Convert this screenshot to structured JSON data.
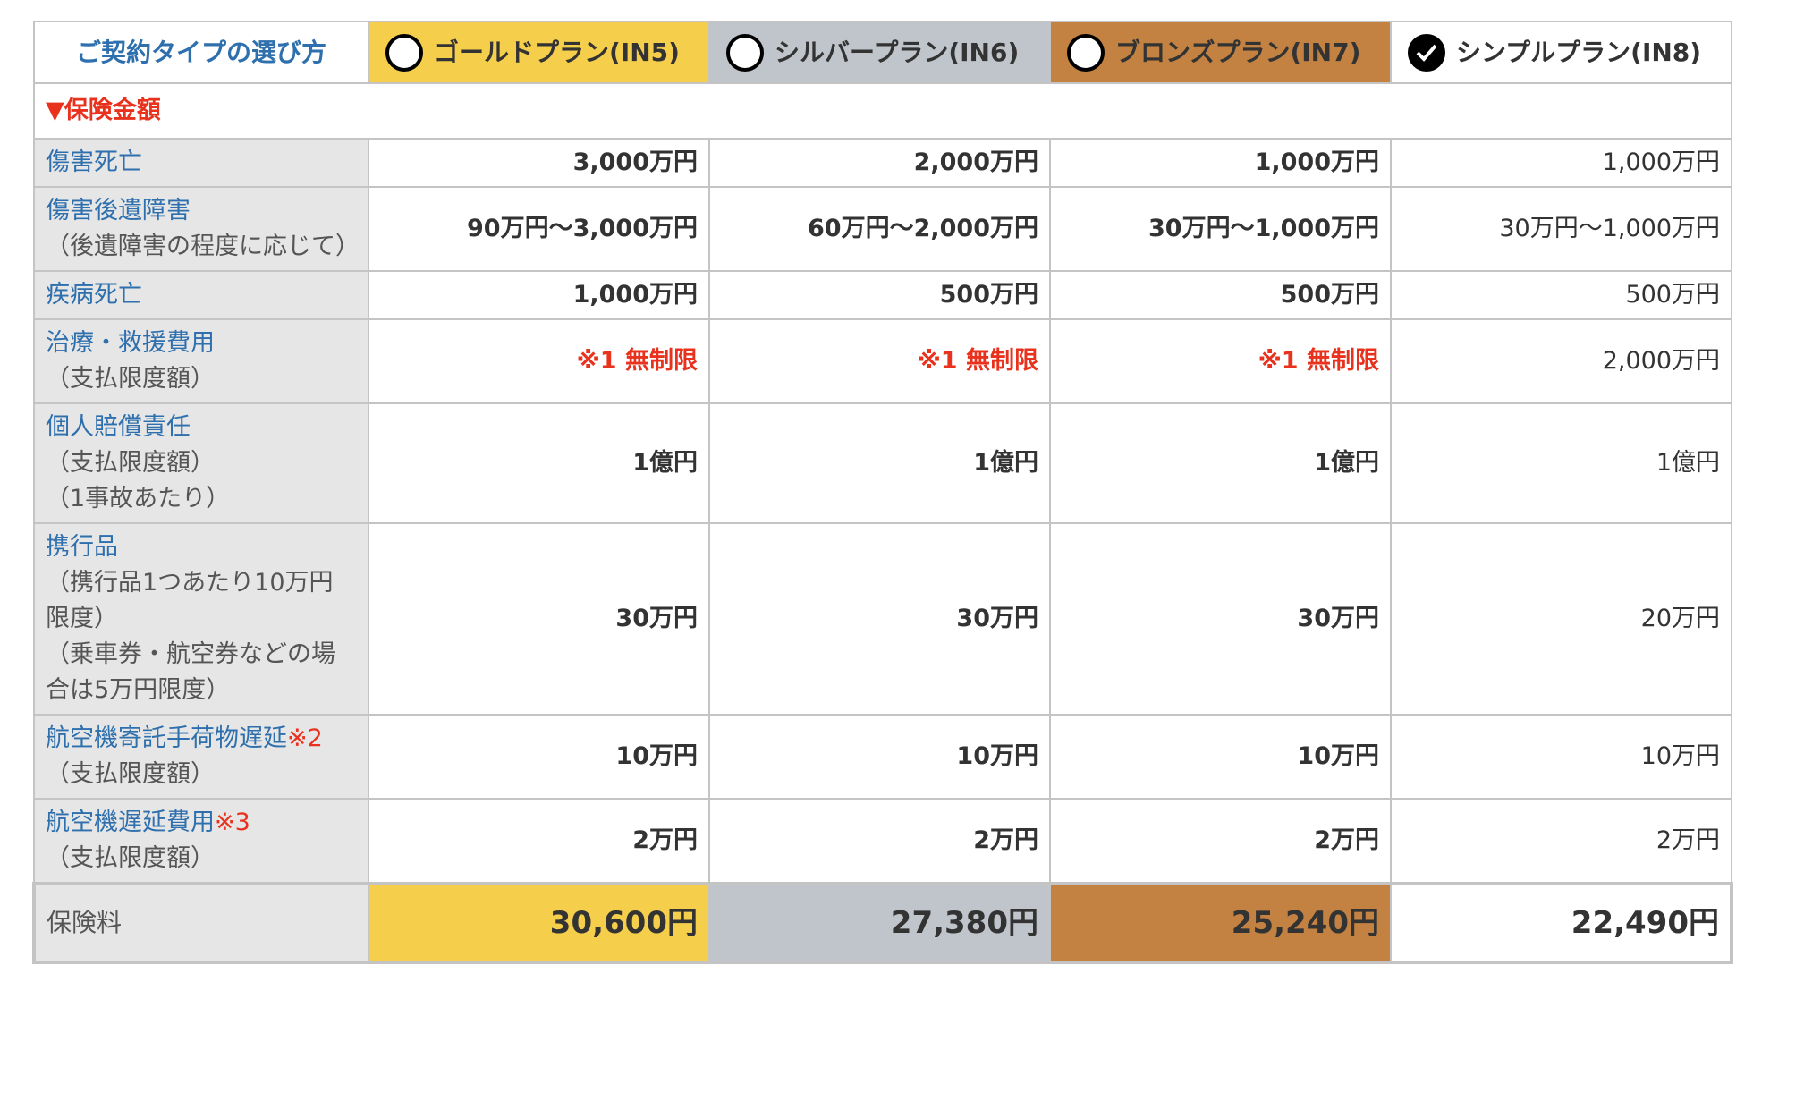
{
  "header": {
    "title": "ご契約タイプの選び方",
    "plans": [
      {
        "label": "ゴールドプラン(IN5)",
        "selected": false,
        "color": "#f5cf4b"
      },
      {
        "label": "シルバープラン(IN6)",
        "selected": false,
        "color": "#bfc5ca"
      },
      {
        "label": "ブロンズプラン(IN7)",
        "selected": false,
        "color": "#c38241"
      },
      {
        "label": "シンプルプラン(IN8)",
        "selected": true,
        "color": "#ffffff"
      }
    ]
  },
  "section": "▼保険金額",
  "rows": [
    {
      "name": "傷害死亡",
      "sub": [],
      "note": "",
      "values": [
        "3,000万円",
        "2,000万円",
        "1,000万円",
        "1,000万円"
      ]
    },
    {
      "name": "傷害後遺障害",
      "sub": [
        "（後遺障害の程度に応じて）"
      ],
      "note": "",
      "values": [
        "90万円〜3,000万円",
        "60万円〜2,000万円",
        "30万円〜1,000万円",
        "30万円〜1,000万円"
      ]
    },
    {
      "name": "疾病死亡",
      "sub": [],
      "note": "",
      "values": [
        "1,000万円",
        "500万円",
        "500万円",
        "500万円"
      ]
    },
    {
      "name": "治療・救援費用",
      "sub": [
        "（支払限度額）"
      ],
      "note": "",
      "values": [
        "※1 無制限",
        "※1 無制限",
        "※1 無制限",
        "2,000万円"
      ]
    },
    {
      "name": "個人賠償責任",
      "sub": [
        "（支払限度額）",
        "（1事故あたり）"
      ],
      "note": "",
      "values": [
        "1億円",
        "1億円",
        "1億円",
        "1億円"
      ]
    },
    {
      "name": "携行品",
      "sub": [
        "（携行品1つあたり10万円限度）",
        "（乗車券・航空券などの場合は5万円限度）"
      ],
      "note": "",
      "values": [
        "30万円",
        "30万円",
        "30万円",
        "20万円"
      ]
    },
    {
      "name": "航空機寄託手荷物遅延",
      "sub": [
        "（支払限度額）"
      ],
      "note": "※2",
      "values": [
        "10万円",
        "10万円",
        "10万円",
        "10万円"
      ]
    },
    {
      "name": "航空機遅延費用",
      "sub": [
        "（支払限度額）"
      ],
      "note": "※3",
      "values": [
        "2万円",
        "2万円",
        "2万円",
        "2万円"
      ]
    }
  ],
  "fee": {
    "label": "保険料",
    "values": [
      "30,600円",
      "27,380円",
      "25,240円",
      "22,490円"
    ]
  },
  "colors": {
    "accent_blue": "#2e6fad",
    "accent_red": "#e8321e",
    "label_bg": "#e6e6e6"
  }
}
